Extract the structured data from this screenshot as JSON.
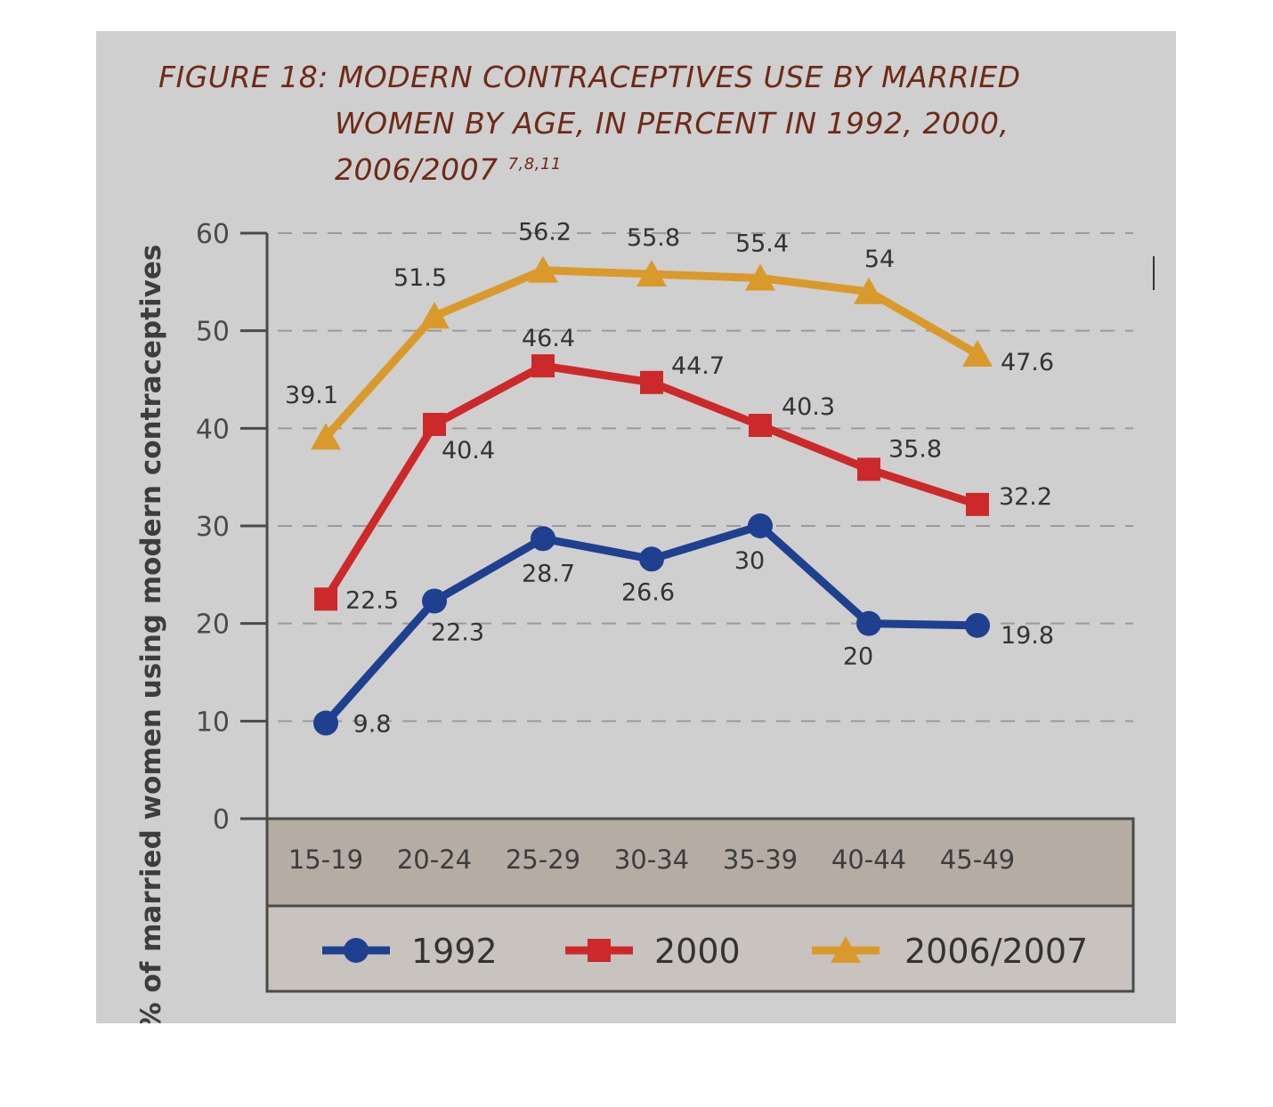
{
  "figure": {
    "title_lines": [
      "FIGURE 18: MODERN CONTRACEPTIVES USE BY MARRIED",
      "WOMEN BY AGE, IN PERCENT IN 1992, 2000,",
      "2006/2007"
    ],
    "title_superscript": "7,8,11"
  },
  "colors": {
    "background": "#cfcfcf",
    "axis": "#4a4a4a",
    "grid": "#9a9a9a",
    "band": "#b5aca4",
    "series_1992": "#1f3f8f",
    "series_2000": "#cc2a2a",
    "series_2006": "#d99a2b",
    "text": "#333333"
  },
  "chart_data": {
    "type": "line",
    "title": "FIGURE 18: MODERN CONTRACEPTIVES USE BY MARRIED WOMEN BY AGE, IN PERCENT IN 1992, 2000, 2006/2007",
    "xlabel": "",
    "ylabel": "% of married women using modern contraceptives",
    "categories": [
      "15-19",
      "20-24",
      "25-29",
      "30-34",
      "35-39",
      "40-44",
      "45-49"
    ],
    "ylim": [
      0,
      60
    ],
    "yticks": [
      0,
      10,
      20,
      30,
      40,
      50,
      60
    ],
    "grid": true,
    "legend": "bottom",
    "series": [
      {
        "name": "1992",
        "marker": "circle",
        "values": [
          9.8,
          22.3,
          28.7,
          26.6,
          30,
          20,
          19.8
        ],
        "labels": [
          "9.8",
          "22.3",
          "28.7",
          "26.6",
          "30",
          "20",
          "19.8"
        ]
      },
      {
        "name": "2000",
        "marker": "square",
        "values": [
          22.5,
          40.4,
          46.4,
          44.7,
          40.3,
          35.8,
          32.2
        ],
        "labels": [
          "22.5",
          "40.4",
          "46.4",
          "44.7",
          "40.3",
          "35.8",
          "32.2"
        ]
      },
      {
        "name": "2006/2007",
        "marker": "triangle",
        "values": [
          39.1,
          51.5,
          56.2,
          55.8,
          55.4,
          54,
          47.6
        ],
        "labels": [
          "39.1",
          "51.5",
          "56.2",
          "55.8",
          "55.4",
          "54",
          "47.6"
        ]
      }
    ]
  }
}
